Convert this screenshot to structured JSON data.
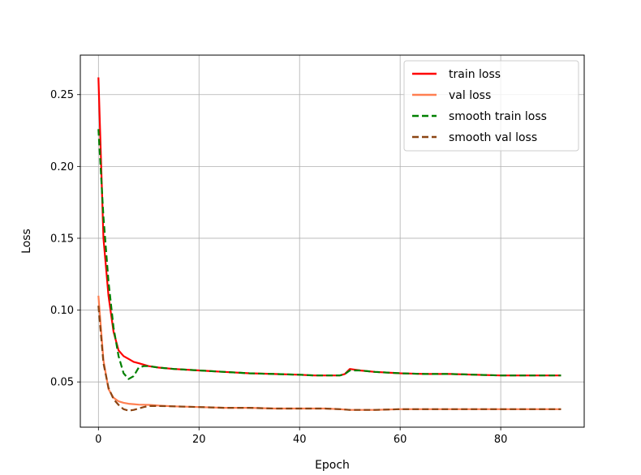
{
  "chart_data": {
    "type": "line",
    "title": "",
    "xlabel": "Epoch",
    "ylabel": "Loss",
    "xlim": [
      -3.6,
      96.6
    ],
    "ylim": [
      0.0185,
      0.2775
    ],
    "xticks": [
      0,
      20,
      40,
      60,
      80
    ],
    "xtick_labels": [
      "0",
      "20",
      "40",
      "60",
      "80"
    ],
    "yticks": [
      0.05,
      0.1,
      0.15,
      0.2,
      0.25
    ],
    "ytick_labels": [
      "0.05",
      "0.10",
      "0.15",
      "0.20",
      "0.25"
    ],
    "grid": true,
    "legend_position": "upper-right",
    "series": [
      {
        "name": "train loss",
        "color": "#ff0000",
        "style": "solid",
        "x": [
          0,
          1,
          2,
          3,
          4,
          5,
          6,
          7,
          8,
          10,
          12,
          15,
          20,
          25,
          30,
          35,
          40,
          43,
          45,
          48,
          49,
          50,
          52,
          55,
          60,
          65,
          70,
          75,
          80,
          85,
          90,
          92
        ],
        "y": [
          0.262,
          0.15,
          0.11,
          0.085,
          0.072,
          0.068,
          0.066,
          0.064,
          0.063,
          0.061,
          0.06,
          0.059,
          0.058,
          0.057,
          0.056,
          0.0555,
          0.055,
          0.0545,
          0.0545,
          0.0545,
          0.0555,
          0.059,
          0.058,
          0.057,
          0.056,
          0.0555,
          0.0555,
          0.055,
          0.0545,
          0.0545,
          0.0545,
          0.0545
        ]
      },
      {
        "name": "val loss",
        "color": "#ff7f50",
        "style": "solid",
        "x": [
          0,
          1,
          2,
          3,
          4,
          5,
          6,
          7,
          8,
          10,
          12,
          15,
          20,
          25,
          30,
          35,
          40,
          45,
          48,
          50,
          55,
          60,
          65,
          70,
          75,
          80,
          85,
          90,
          92
        ],
        "y": [
          0.11,
          0.065,
          0.045,
          0.039,
          0.0365,
          0.0355,
          0.0348,
          0.0345,
          0.0342,
          0.034,
          0.0335,
          0.033,
          0.0325,
          0.032,
          0.032,
          0.0315,
          0.0315,
          0.0315,
          0.031,
          0.0305,
          0.0305,
          0.031,
          0.031,
          0.031,
          0.031,
          0.031,
          0.031,
          0.031,
          0.031
        ]
      },
      {
        "name": "smooth train loss",
        "color": "#008000",
        "style": "dashed",
        "x": [
          0,
          1,
          2,
          3,
          4,
          5,
          6,
          7,
          8,
          9,
          10,
          12,
          15,
          20,
          25,
          30,
          35,
          40,
          43,
          45,
          48,
          49,
          50,
          52,
          55,
          60,
          65,
          70,
          75,
          80,
          85,
          90,
          92
        ],
        "y": [
          0.226,
          0.165,
          0.12,
          0.088,
          0.068,
          0.056,
          0.052,
          0.054,
          0.06,
          0.061,
          0.061,
          0.06,
          0.059,
          0.058,
          0.057,
          0.056,
          0.0555,
          0.055,
          0.0545,
          0.0545,
          0.0545,
          0.0555,
          0.058,
          0.058,
          0.057,
          0.056,
          0.0555,
          0.0555,
          0.055,
          0.0545,
          0.0545,
          0.0545,
          0.0545
        ]
      },
      {
        "name": "smooth val loss",
        "color": "#8b4513",
        "style": "dashed",
        "x": [
          0,
          1,
          2,
          3,
          4,
          5,
          6,
          7,
          8,
          9,
          10,
          12,
          15,
          20,
          25,
          30,
          35,
          40,
          45,
          48,
          50,
          55,
          60,
          65,
          70,
          75,
          80,
          85,
          90,
          92
        ],
        "y": [
          0.103,
          0.063,
          0.046,
          0.038,
          0.034,
          0.031,
          0.03,
          0.0305,
          0.0315,
          0.0325,
          0.0332,
          0.0332,
          0.033,
          0.0325,
          0.032,
          0.032,
          0.0315,
          0.0315,
          0.0315,
          0.031,
          0.0305,
          0.0305,
          0.031,
          0.031,
          0.031,
          0.031,
          0.031,
          0.031,
          0.031,
          0.031
        ]
      }
    ]
  }
}
